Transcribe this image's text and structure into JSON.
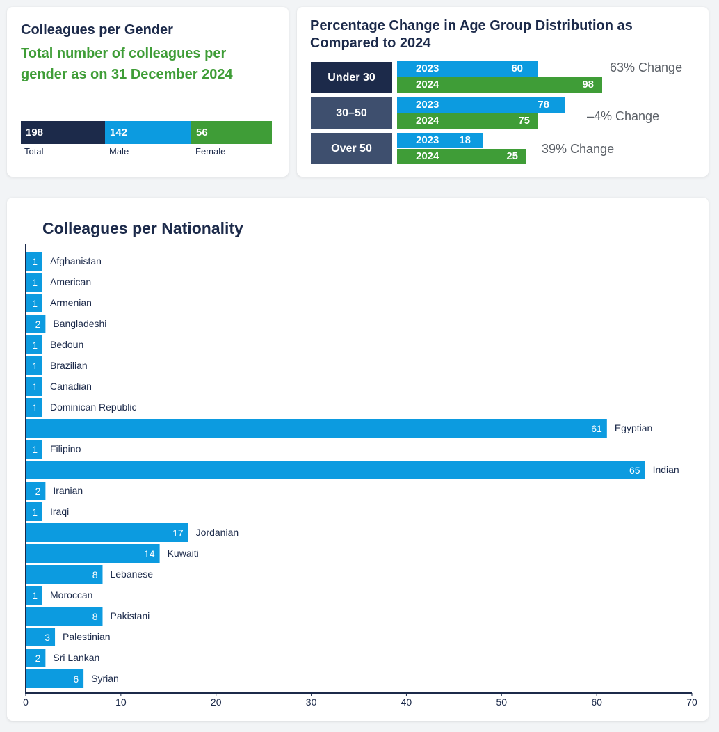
{
  "gender": {
    "title": "Colleagues per Gender",
    "subtitle_line1": "Total number of colleagues per",
    "subtitle_line2": "gender as on 31 December 2024",
    "segments": [
      {
        "label": "Total",
        "value": "198",
        "color": "#1c2a4a"
      },
      {
        "label": "Male",
        "value": "142",
        "color": "#0c9be0"
      },
      {
        "label": "Female",
        "value": "56",
        "color": "#3f9d37"
      }
    ]
  },
  "age": {
    "title_line1": "Percentage Change in Age Group Distribution as",
    "title_line2": "Compared to 2024",
    "groups": [
      {
        "label": "Under 30",
        "year_a": "2023",
        "value_a": 60,
        "year_b": "2024",
        "value_b": 98,
        "change": "63%  Change"
      },
      {
        "label": "30–50",
        "year_a": "2023",
        "value_a": 78,
        "year_b": "2024",
        "value_b": 75,
        "change": "–4%  Change"
      },
      {
        "label": "Over 50",
        "year_a": "2023",
        "value_a": 18,
        "year_b": "2024",
        "value_b": 25,
        "change": "39%  Change"
      }
    ],
    "colors": {
      "box_first": "#1c2a4a",
      "box_other": "#3e4f6e",
      "y2023": "#0c9be0",
      "y2024": "#3f9d37"
    }
  },
  "nationality": {
    "title": "Colleagues per Nationality"
  },
  "chart_data": {
    "type": "bar",
    "orientation": "horizontal",
    "title": "Colleagues per Nationality",
    "categories": [
      "Afghanistan",
      "American",
      "Armenian",
      "Bangladeshi",
      "Bedoun",
      "Brazilian",
      "Canadian",
      "Dominican Republic",
      "Egyptian",
      "Filipino",
      "Indian",
      "Iranian",
      "Iraqi",
      "Jordanian",
      "Kuwaiti",
      "Lebanese",
      "Moroccan",
      "Pakistani",
      "Palestinian",
      "Sri Lankan",
      "Syrian"
    ],
    "values": [
      1,
      1,
      1,
      2,
      1,
      1,
      1,
      1,
      61,
      1,
      65,
      2,
      1,
      17,
      14,
      8,
      1,
      8,
      3,
      2,
      6
    ],
    "xlim": [
      0,
      70
    ],
    "xticks": [
      0,
      10,
      20,
      30,
      40,
      50,
      60,
      70
    ],
    "bar_color": "#0c9be0",
    "xlabel": "",
    "ylabel": ""
  }
}
